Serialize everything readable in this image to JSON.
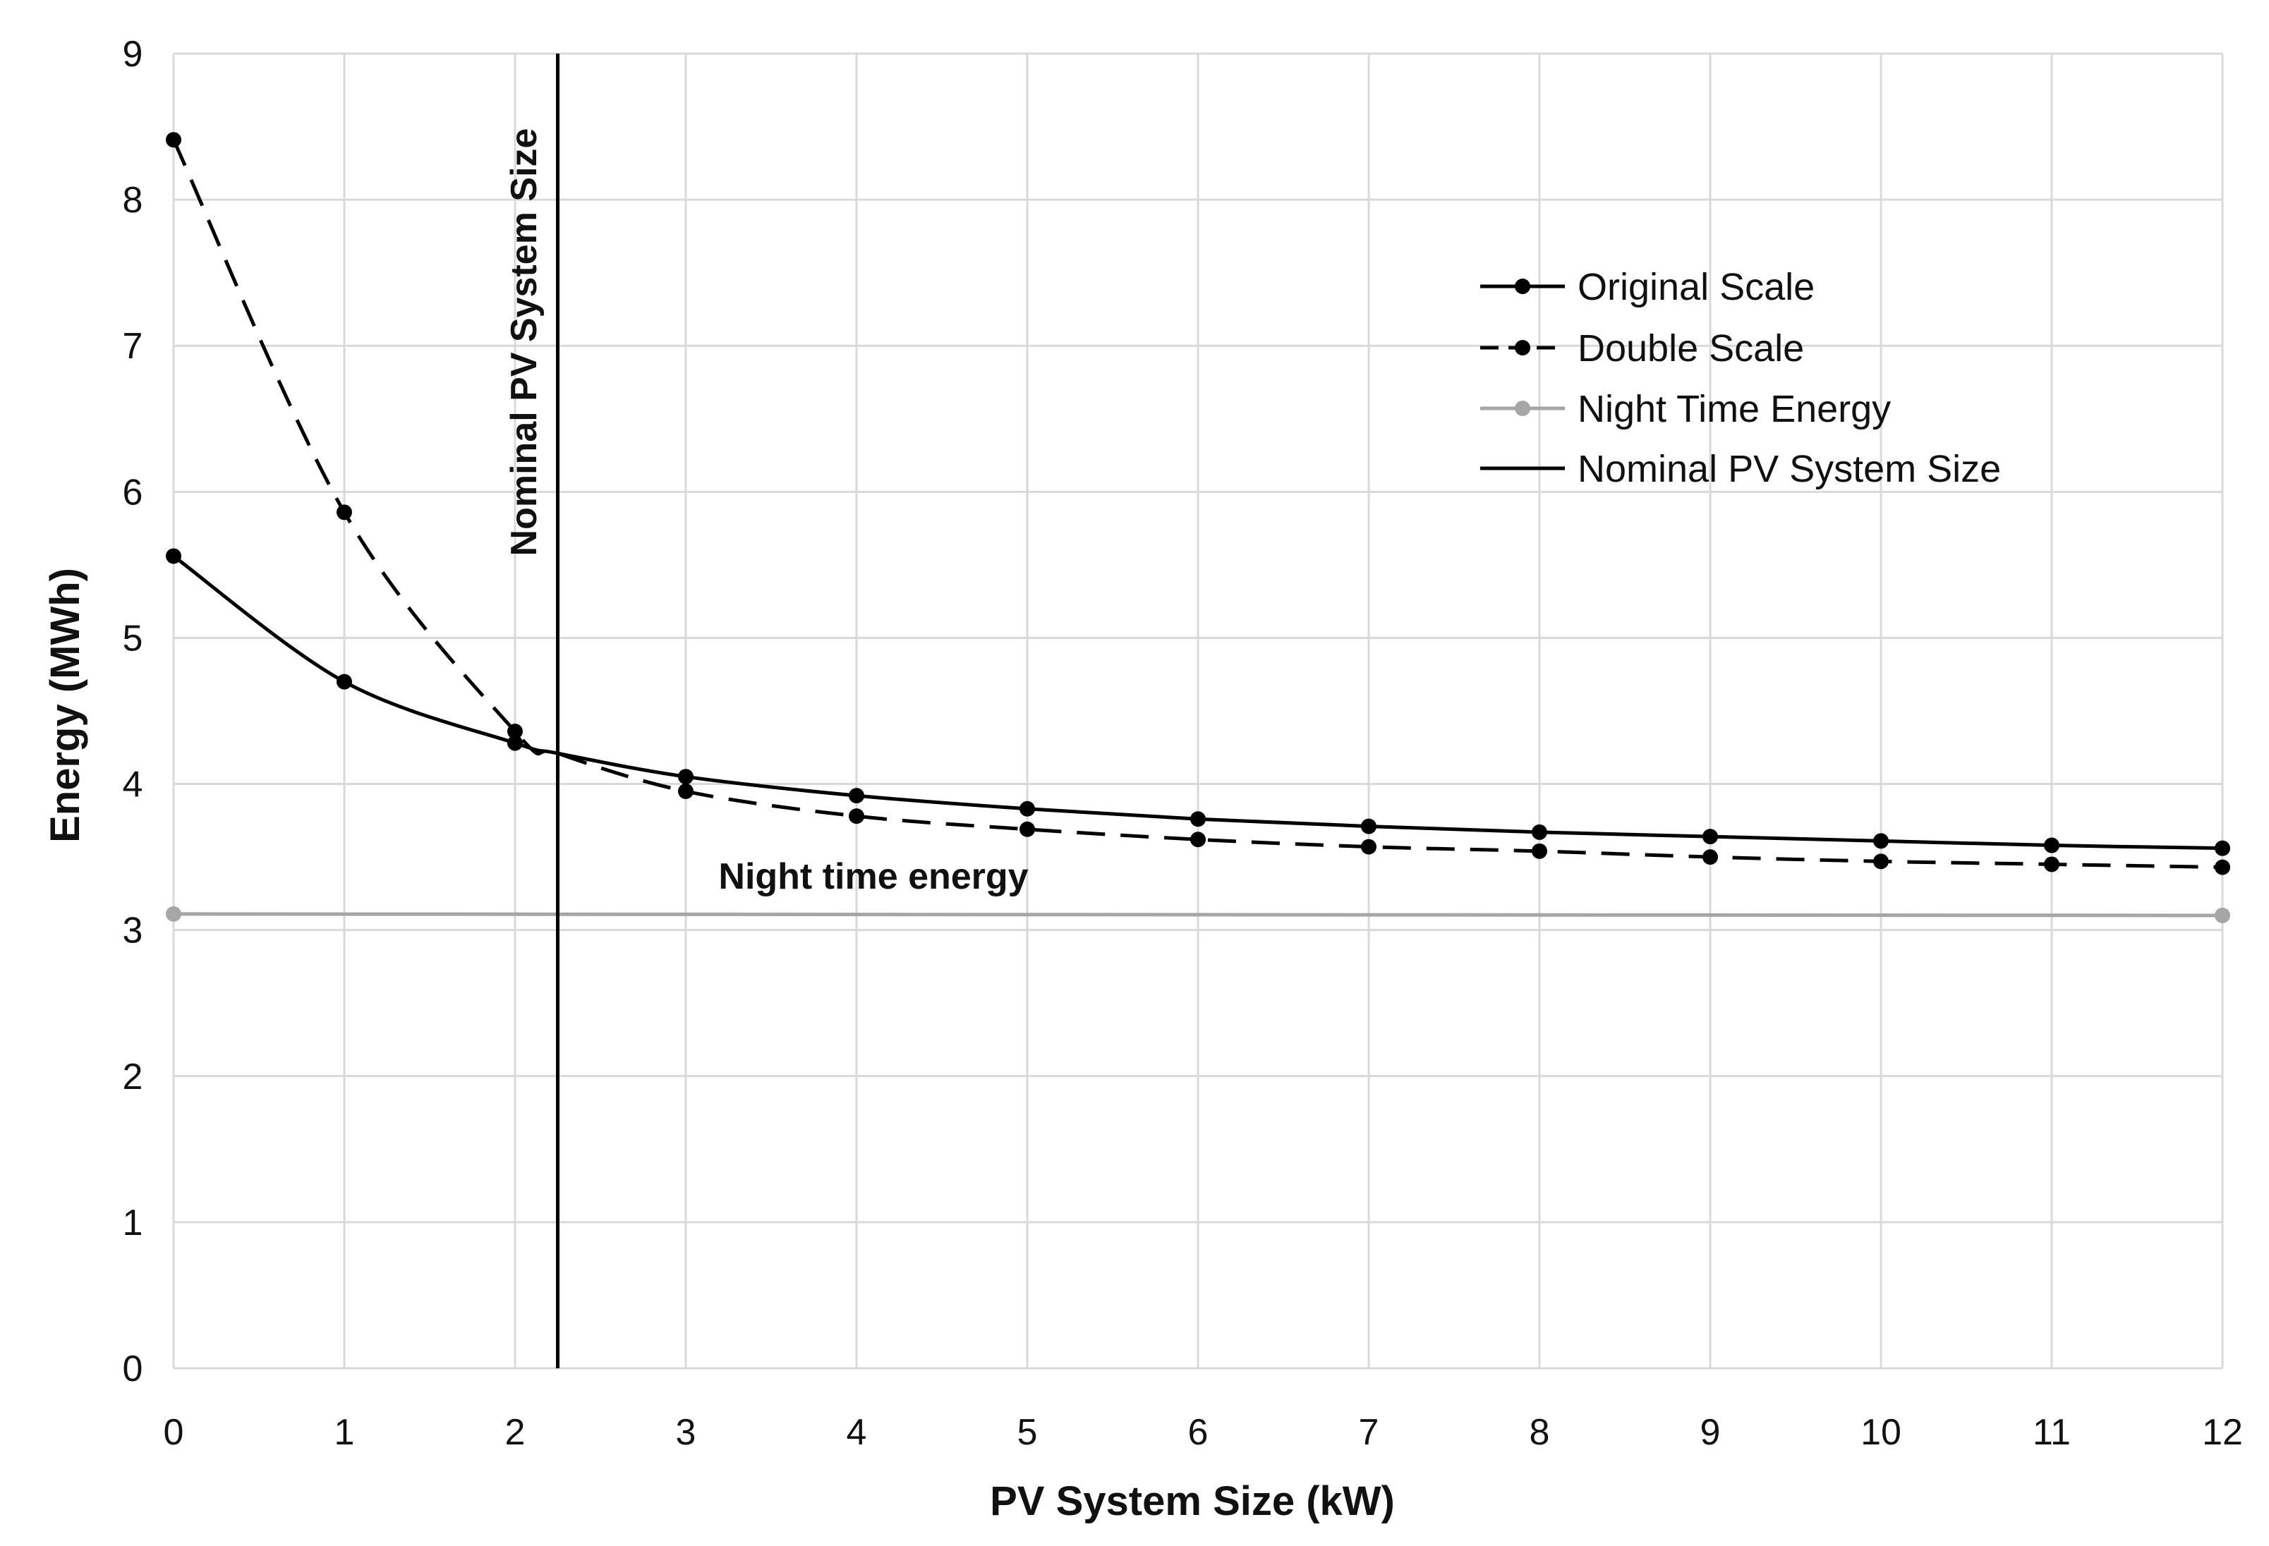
{
  "chart_data": {
    "type": "line",
    "title": "",
    "xlabel": "PV System Size (kW)",
    "ylabel": "Energy (MWh)",
    "xlim": [
      0,
      12
    ],
    "ylim": [
      0,
      9
    ],
    "x_ticks": [
      0,
      1,
      2,
      3,
      4,
      5,
      6,
      7,
      8,
      9,
      10,
      11,
      12
    ],
    "y_ticks": [
      0,
      1,
      2,
      3,
      4,
      5,
      6,
      7,
      8,
      9
    ],
    "grid": true,
    "legend_position": "top-right",
    "series": [
      {
        "name": "Original Scale",
        "color": "#000000",
        "style": "solid",
        "x": [
          0,
          1,
          2,
          2.25,
          3,
          4,
          5,
          6,
          7,
          8,
          9,
          10,
          11,
          12
        ],
        "y": [
          5.56,
          4.7,
          4.28,
          4.21,
          4.05,
          3.92,
          3.83,
          3.76,
          3.71,
          3.67,
          3.64,
          3.61,
          3.58,
          3.56
        ]
      },
      {
        "name": "Double Scale",
        "color": "#000000",
        "style": "dashed",
        "x": [
          0,
          1,
          2,
          2.25,
          3,
          4,
          5,
          6,
          7,
          8,
          9,
          10,
          11,
          12
        ],
        "y": [
          8.41,
          5.86,
          4.36,
          4.21,
          3.95,
          3.78,
          3.69,
          3.62,
          3.57,
          3.54,
          3.5,
          3.47,
          3.45,
          3.43
        ]
      },
      {
        "name": "Night Time Energy",
        "color": "#a6a6a6",
        "style": "solid",
        "x": [
          0,
          12
        ],
        "y": [
          3.11,
          3.1
        ]
      },
      {
        "name": "Nominal PV System Size",
        "color": "#000000",
        "style": "vertical",
        "x": [
          2.25,
          2.25
        ],
        "y": [
          0,
          9
        ]
      }
    ],
    "annotations": {
      "nominal_label": "Nominal PV System Size",
      "night_label": "Night time energy"
    }
  }
}
